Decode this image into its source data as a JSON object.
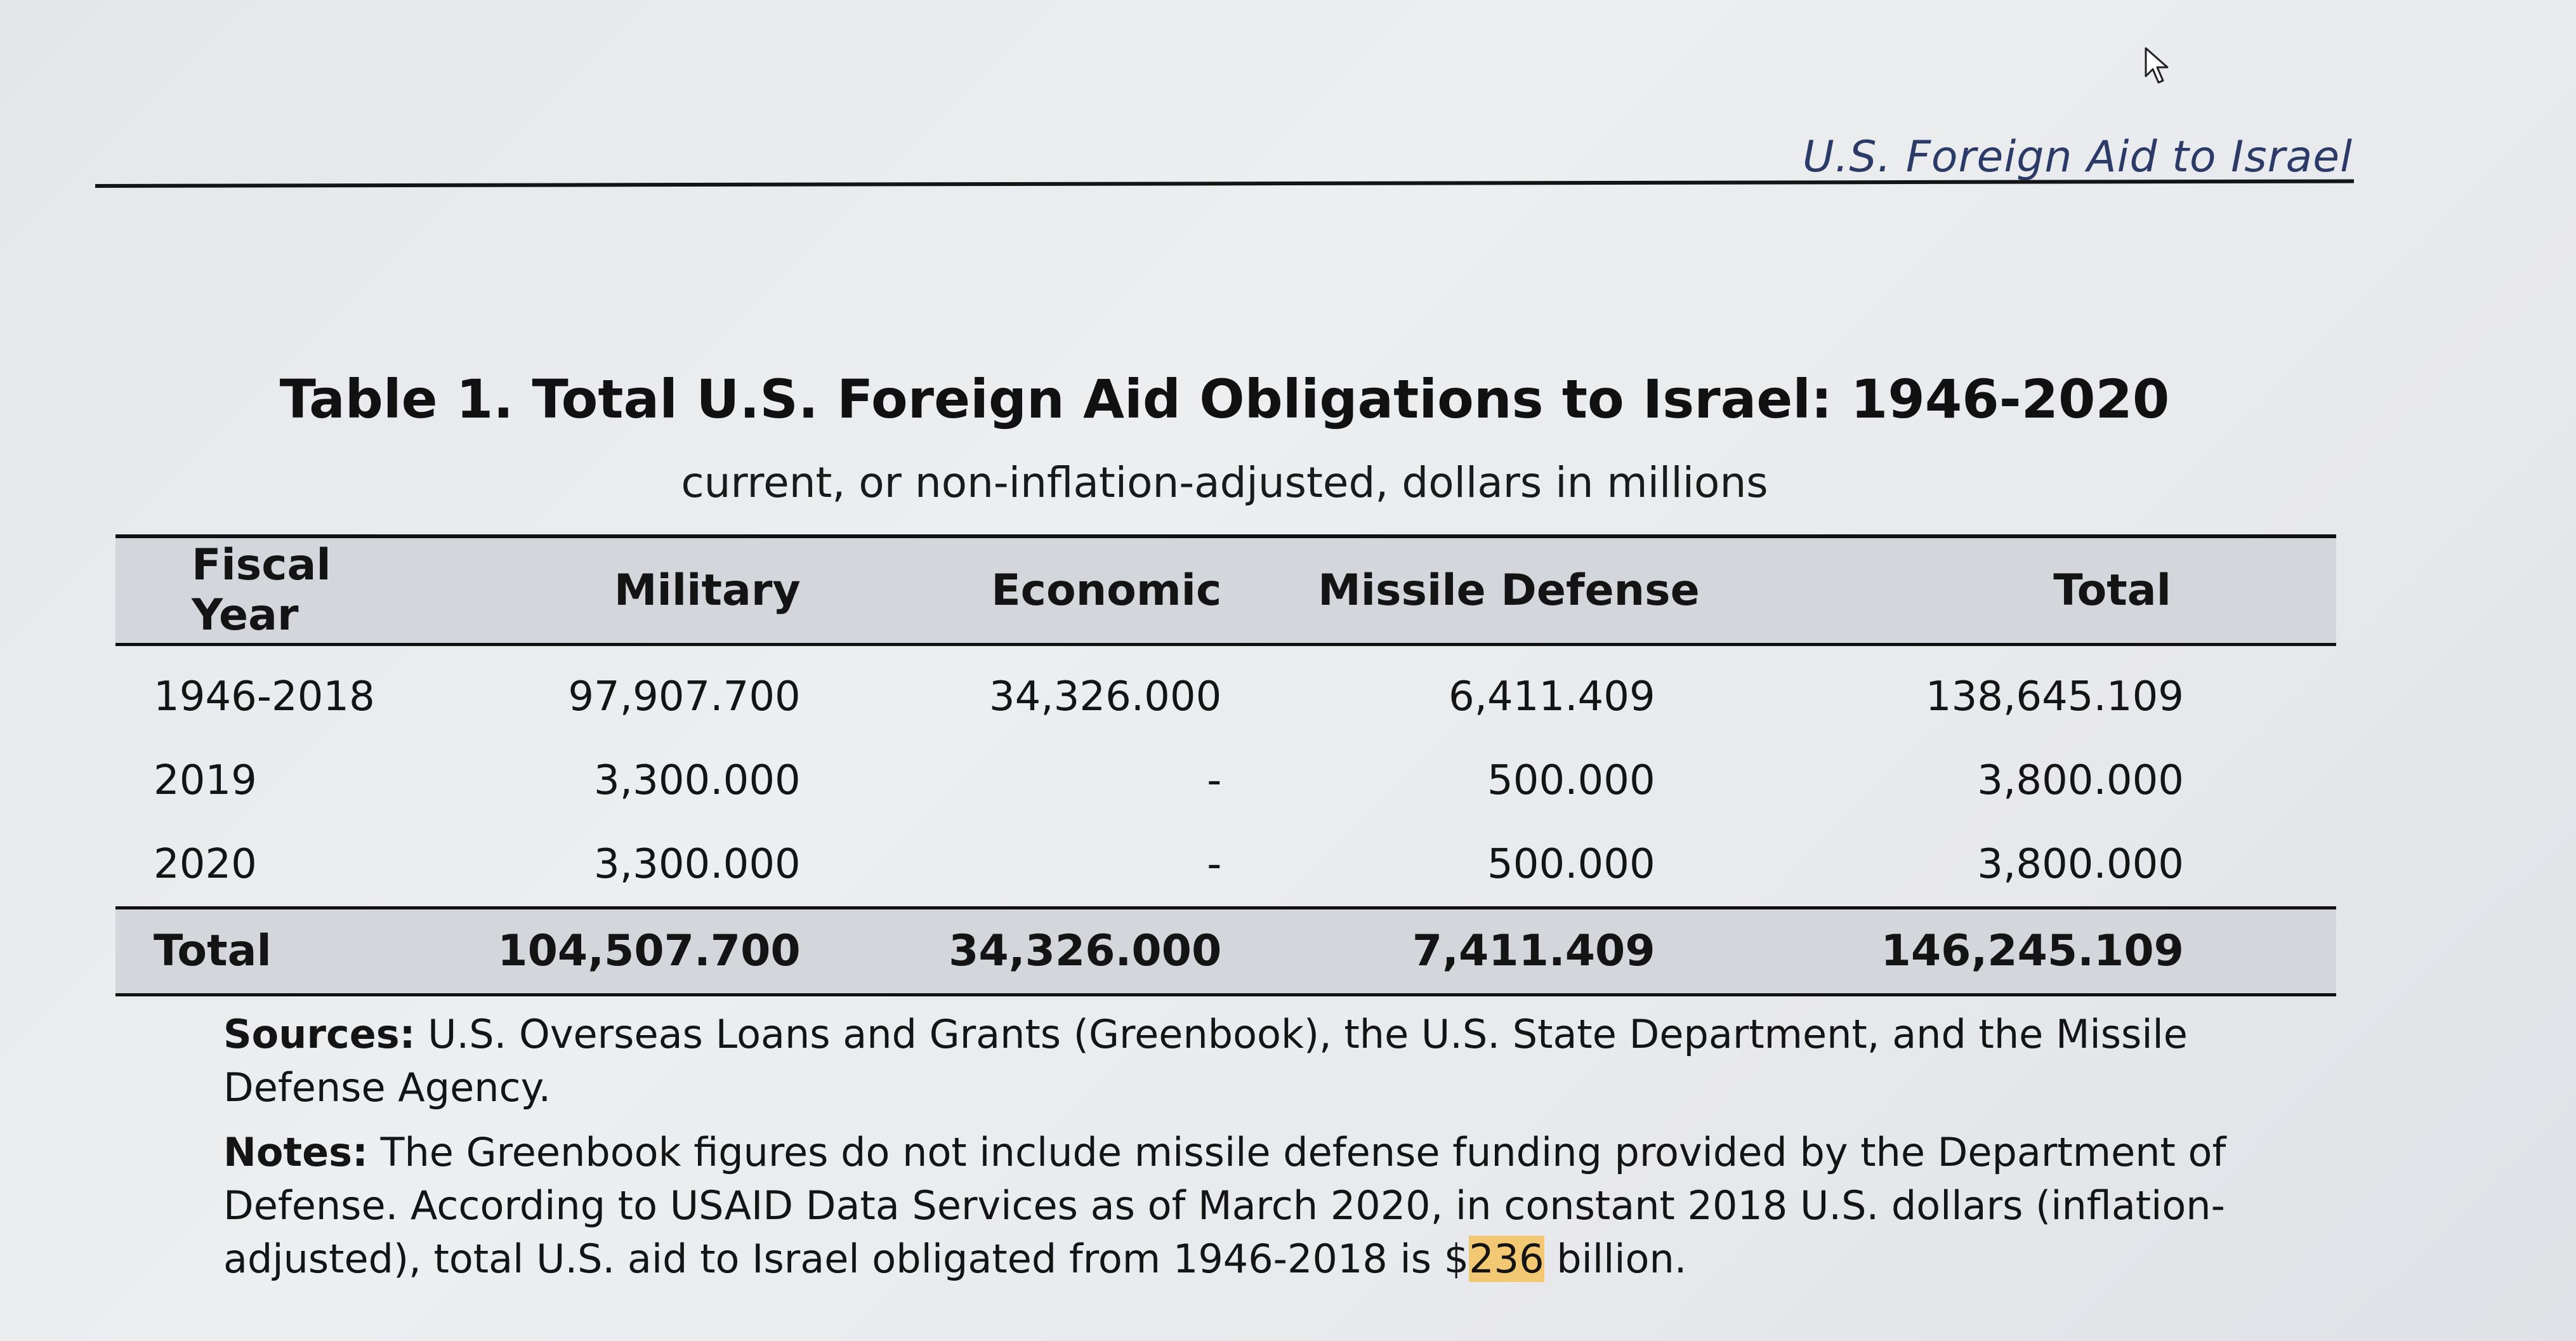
{
  "running_header": "U.S. Foreign Aid to Israel",
  "table": {
    "title": "Table 1. Total U.S. Foreign Aid Obligations to Israel: 1946-2020",
    "subtitle": "current, or non-inflation-adjusted, dollars in millions",
    "columns": [
      "Fiscal Year",
      "Military",
      "Economic",
      "Missile Defense",
      "Total"
    ],
    "rows": [
      [
        "1946-2018",
        "97,907.700",
        "34,326.000",
        "6,411.409",
        "138,645.109"
      ],
      [
        "2019",
        "3,300.000",
        "-",
        "500.000",
        "3,800.000"
      ],
      [
        "2020",
        "3,300.000",
        "-",
        "500.000",
        "3,800.000"
      ]
    ],
    "total_row": [
      "Total",
      "104,507.700",
      "34,326.000",
      "7,411.409",
      "146,245.109"
    ]
  },
  "sources": {
    "label": "Sources:",
    "text": " U.S. Overseas Loans and Grants (Greenbook), the U.S. State Department, and the Missile Defense Agency."
  },
  "notes": {
    "label": "Notes:",
    "text_before": " The Greenbook figures do not include missile defense funding provided by the Department of Defense. According to USAID Data Services as of March 2020, in constant 2018 U.S. dollars (inflation-adjusted), total U.S. aid to Israel obligated from 1946-2018 is $",
    "highlight": "236",
    "text_after": " billion."
  },
  "colors": {
    "header_fill": "#d3d6db",
    "highlight": "#f3c873",
    "running_header_text": "#2b3a66"
  },
  "icons": [
    "mouse-cursor-icon"
  ]
}
